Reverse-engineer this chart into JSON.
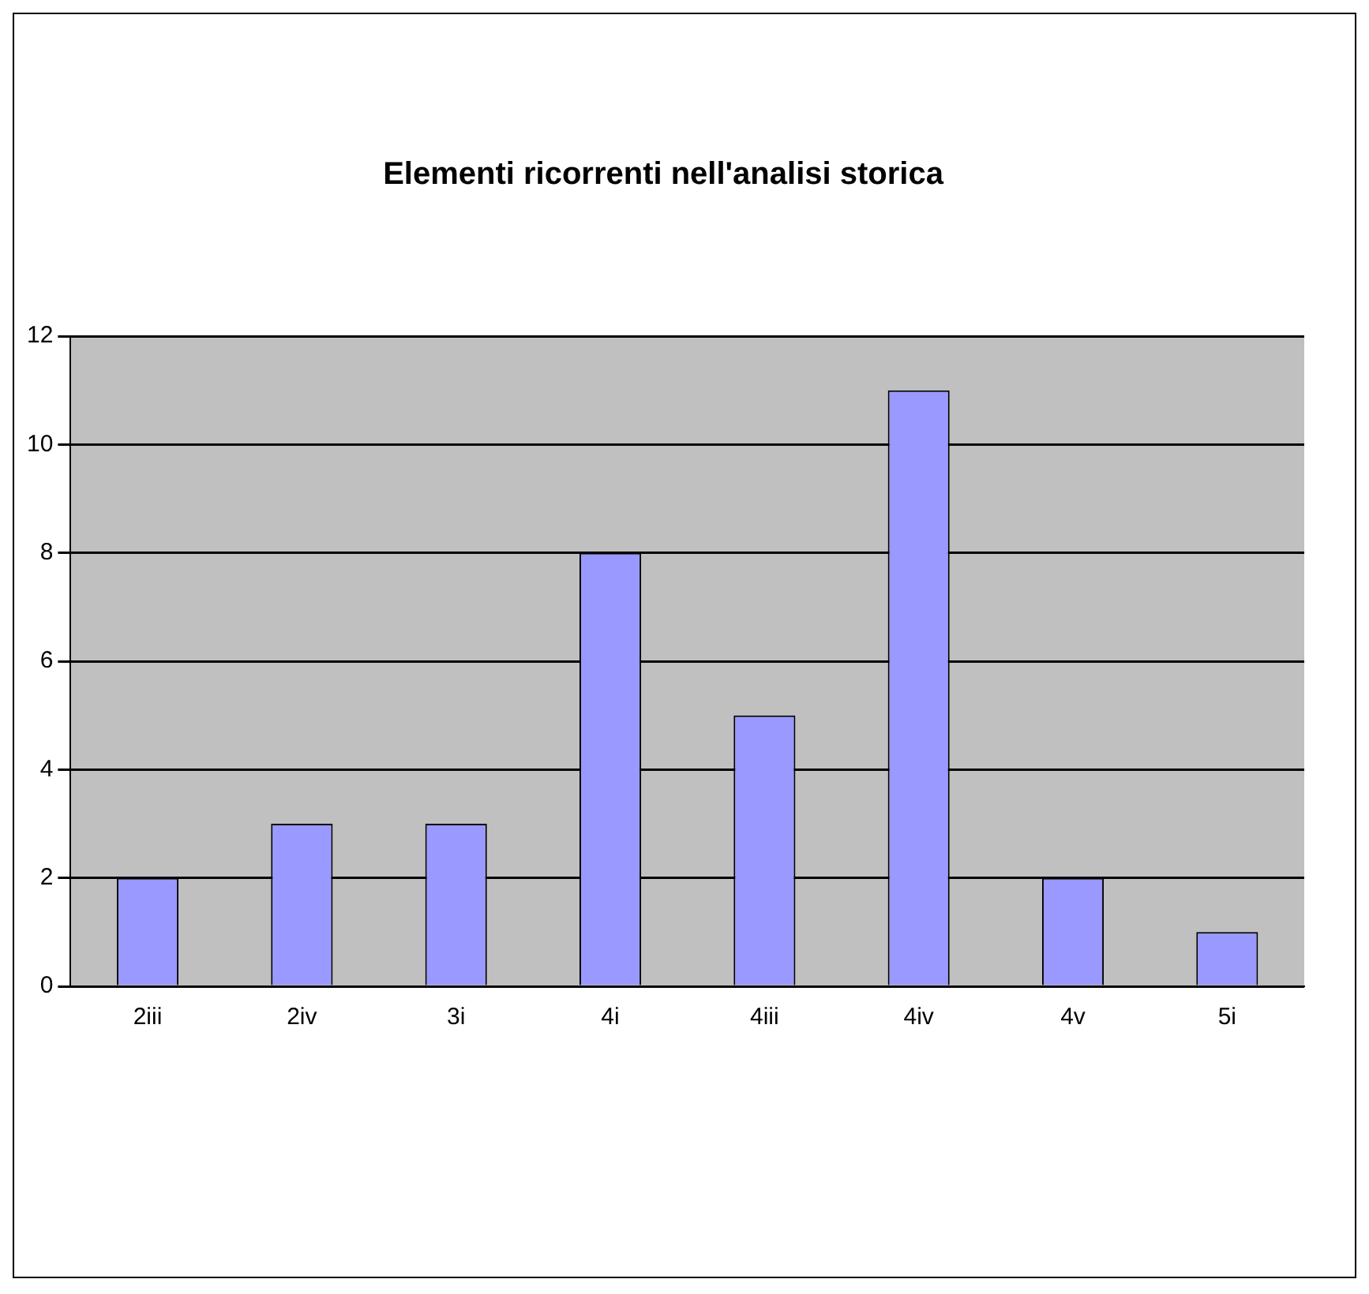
{
  "chart_data": {
    "type": "bar",
    "title": "Elementi ricorrenti nell'analisi storica",
    "categories": [
      "2iii",
      "2iv",
      "3i",
      "4i",
      "4iii",
      "4iv",
      "4v",
      "5i"
    ],
    "values": [
      2,
      3,
      3,
      8,
      5,
      11,
      2,
      1
    ],
    "color": "#9999ff",
    "ylim": [
      0,
      12
    ],
    "yticks": [
      0,
      2,
      4,
      6,
      8,
      10,
      12
    ],
    "grid": "y",
    "legend": false
  }
}
